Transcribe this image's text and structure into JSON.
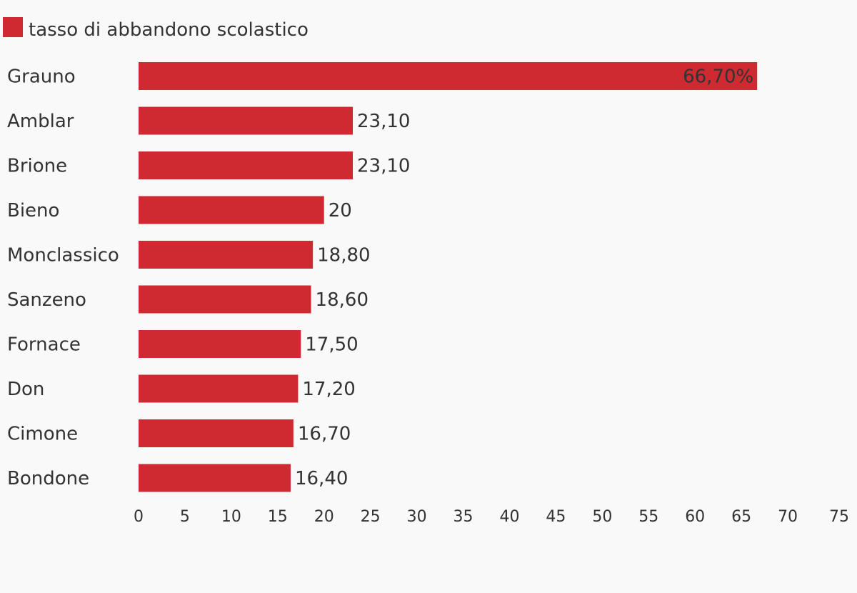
{
  "chart_data": {
    "type": "bar",
    "orientation": "horizontal",
    "categories": [
      "Grauno",
      "Amblar",
      "Brione",
      "Bieno",
      "Monclassico",
      "Sanzeno",
      "Fornace",
      "Don",
      "Cimone",
      "Bondone"
    ],
    "series": [
      {
        "name": "tasso di abbandono scolastico",
        "values": [
          66.7,
          23.1,
          23.1,
          20,
          18.8,
          18.6,
          17.5,
          17.2,
          16.7,
          16.4
        ],
        "labels": [
          "66,70%",
          "23,10",
          "23,10",
          "20",
          "18,80",
          "18,60",
          "17,50",
          "17,20",
          "16,70",
          "16,40"
        ],
        "color": "#cf2a31"
      }
    ],
    "xlim": [
      0,
      75
    ],
    "xticks": [
      "0",
      "5",
      "10",
      "15",
      "20",
      "25",
      "30",
      "35",
      "40",
      "45",
      "50",
      "55",
      "60",
      "65",
      "70",
      "75"
    ],
    "grid": false,
    "legend_position": "top-left"
  },
  "colors": {
    "background": "#f9f9f9",
    "text": "#333333",
    "bar": "#cf2a31"
  }
}
